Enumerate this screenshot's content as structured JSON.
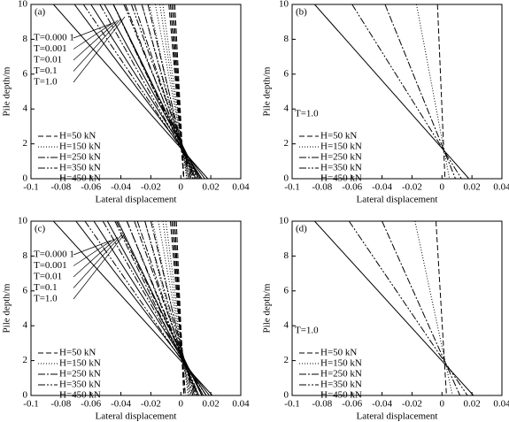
{
  "chart_data": [
    {
      "type": "line",
      "panel": "(a)",
      "x_label": "Lateral displacement",
      "y_label": "Pile depth/m",
      "xlim": [
        -0.1,
        0.04
      ],
      "xticks": [
        -0.1,
        -0.08,
        -0.06,
        -0.04,
        -0.02,
        0,
        0.02,
        0.04
      ],
      "ylim": [
        0,
        10
      ],
      "yticks": [
        0,
        2,
        4,
        6,
        8,
        10
      ],
      "depths": [
        10,
        0
      ],
      "annotations": [
        "T=0.000 1",
        "T=0.001",
        "T=0.01",
        "T=0.1",
        "T=1.0"
      ],
      "series": [
        {
          "name": "H=50 kN",
          "dash": "6,3",
          "tops": [
            -0.004,
            -0.005,
            -0.006,
            -0.007,
            -0.008
          ],
          "bottoms": [
            0.002,
            0.002,
            0.002,
            0.002,
            0.002
          ]
        },
        {
          "name": "H=150 kN",
          "dash": "1,2",
          "tops": [
            -0.012,
            -0.014,
            -0.017,
            -0.021,
            -0.026
          ],
          "bottoms": [
            0.004,
            0.004,
            0.005,
            0.005,
            0.006
          ]
        },
        {
          "name": "H=250 kN",
          "dash": "8,2,2,2",
          "tops": [
            -0.022,
            -0.026,
            -0.031,
            -0.037,
            -0.045
          ],
          "bottoms": [
            0.006,
            0.007,
            0.008,
            0.009,
            0.01
          ]
        },
        {
          "name": "H=350 kN",
          "dash": "8,2,2,2,2,2",
          "tops": [
            -0.033,
            -0.038,
            -0.045,
            -0.054,
            -0.065
          ],
          "bottoms": [
            0.009,
            0.01,
            0.011,
            0.012,
            0.014
          ]
        },
        {
          "name": "H=450 kN",
          "dash": "",
          "tops": [
            -0.045,
            -0.051,
            -0.06,
            -0.071,
            -0.085
          ],
          "bottoms": [
            0.012,
            0.013,
            0.014,
            0.016,
            0.018
          ]
        }
      ]
    },
    {
      "type": "line",
      "panel": "(b)",
      "x_label": "Lateral displacement",
      "y_label": "Pile depth/m",
      "xlim": [
        -0.1,
        0.04
      ],
      "xticks": [
        -0.1,
        -0.08,
        -0.06,
        -0.04,
        -0.02,
        0,
        0.02,
        0.04
      ],
      "ylim": [
        0,
        10
      ],
      "yticks": [
        0,
        2,
        4,
        6,
        8,
        10
      ],
      "depths": [
        10,
        0
      ],
      "annotations": [
        "T=1.0"
      ],
      "series": [
        {
          "name": "H=50 kN",
          "dash": "6,3",
          "tops": [
            -0.003
          ],
          "bottoms": [
            0.002
          ]
        },
        {
          "name": "H=150 kN",
          "dash": "1,2",
          "tops": [
            -0.017
          ],
          "bottoms": [
            0.005
          ]
        },
        {
          "name": "H=250 kN",
          "dash": "8,2,2,2",
          "tops": [
            -0.038
          ],
          "bottoms": [
            0.009
          ]
        },
        {
          "name": "H=350 kN",
          "dash": "8,2,2,2,2,2",
          "tops": [
            -0.06
          ],
          "bottoms": [
            0.013
          ]
        },
        {
          "name": "H=450 kN",
          "dash": "",
          "tops": [
            -0.085
          ],
          "bottoms": [
            0.018
          ]
        }
      ]
    },
    {
      "type": "line",
      "panel": "(c)",
      "x_label": "Lateral displacement",
      "y_label": "Pile depth/m",
      "xlim": [
        -0.1,
        0.04
      ],
      "xticks": [
        -0.1,
        -0.08,
        -0.06,
        -0.04,
        -0.02,
        0,
        0.02,
        0.04
      ],
      "ylim": [
        0,
        10
      ],
      "yticks": [
        0,
        2,
        4,
        6,
        8,
        10
      ],
      "depths": [
        10,
        0
      ],
      "annotations": [
        "T=0.000 1",
        "T=0.001",
        "T=0.01",
        "T=0.1",
        "T=1.0"
      ],
      "series": [
        {
          "name": "H=50 kN",
          "dash": "6,3",
          "tops": [
            -0.003,
            -0.004,
            -0.005,
            -0.006,
            -0.007
          ],
          "bottoms": [
            0.002,
            0.002,
            0.003,
            0.003,
            0.003
          ]
        },
        {
          "name": "H=150 kN",
          "dash": "1,2",
          "tops": [
            -0.01,
            -0.012,
            -0.015,
            -0.019,
            -0.024
          ],
          "bottoms": [
            0.005,
            0.005,
            0.006,
            0.007,
            0.007
          ]
        },
        {
          "name": "H=250 kN",
          "dash": "8,2,2,2",
          "tops": [
            -0.02,
            -0.024,
            -0.029,
            -0.036,
            -0.044
          ],
          "bottoms": [
            0.008,
            0.009,
            0.01,
            0.011,
            0.012
          ]
        },
        {
          "name": "H=350 kN",
          "dash": "8,2,2,2,2,2",
          "tops": [
            -0.031,
            -0.036,
            -0.043,
            -0.052,
            -0.064
          ],
          "bottoms": [
            0.011,
            0.012,
            0.014,
            0.015,
            0.017
          ]
        },
        {
          "name": "H=450 kN",
          "dash": "",
          "tops": [
            -0.042,
            -0.049,
            -0.058,
            -0.07,
            -0.085
          ],
          "bottoms": [
            0.014,
            0.015,
            0.017,
            0.019,
            0.021
          ]
        }
      ]
    },
    {
      "type": "line",
      "panel": "(d)",
      "x_label": "Lateral displacement",
      "y_label": "Pile depth/m",
      "xlim": [
        -0.1,
        0.04
      ],
      "xticks": [
        -0.1,
        -0.08,
        -0.06,
        -0.04,
        -0.02,
        0,
        0.02,
        0.04
      ],
      "ylim": [
        0,
        10
      ],
      "yticks": [
        0,
        2,
        4,
        6,
        8,
        10
      ],
      "depths": [
        10,
        0
      ],
      "annotations": [
        "T=1.0"
      ],
      "series": [
        {
          "name": "H=50 kN",
          "dash": "6,3",
          "tops": [
            -0.004
          ],
          "bottoms": [
            0.003
          ]
        },
        {
          "name": "H=150 kN",
          "dash": "1,2",
          "tops": [
            -0.018
          ],
          "bottoms": [
            0.007
          ]
        },
        {
          "name": "H=250 kN",
          "dash": "8,2,2,2",
          "tops": [
            -0.04
          ],
          "bottoms": [
            0.012
          ]
        },
        {
          "name": "H=350 kN",
          "dash": "8,2,2,2,2,2",
          "tops": [
            -0.062
          ],
          "bottoms": [
            0.017
          ]
        },
        {
          "name": "H=450 kN",
          "dash": "",
          "tops": [
            -0.085
          ],
          "bottoms": [
            0.021
          ]
        }
      ]
    }
  ]
}
